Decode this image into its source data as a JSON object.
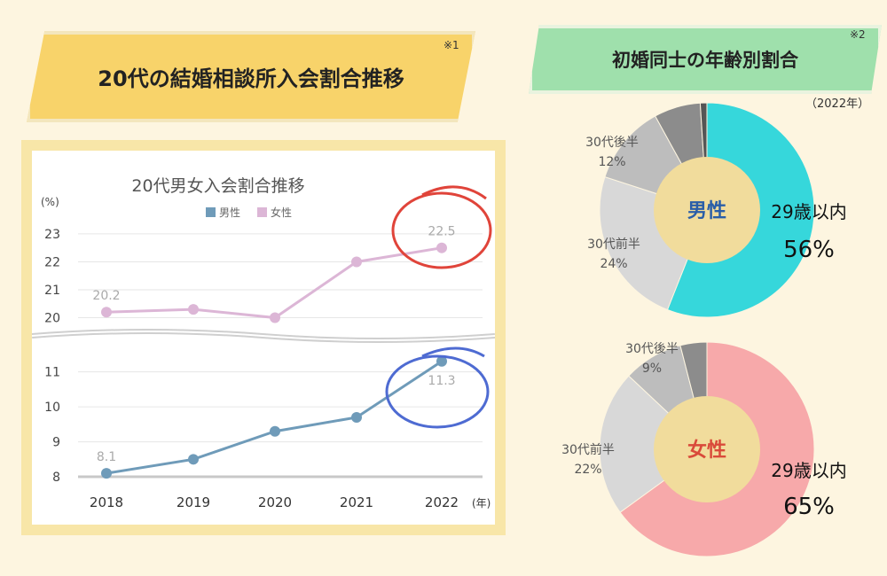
{
  "left_title": "20代の結婚相談所入会割合推移",
  "left_note": "※1",
  "right_title": "初婚同士の年齢別割合",
  "right_note": "※2",
  "right_year": "（2022年）",
  "colors": {
    "male": "#6f9bb9",
    "female": "#dcb6d6",
    "male_pie": "#36d7db",
    "female_pie": "#f7a9aa",
    "gray_light": "#d8d8d8",
    "gray_mid": "#bdbdbd",
    "gray_dark": "#8c8c8c",
    "gray_darkest": "#555555",
    "center": "#f1dc9c"
  },
  "chart_data": [
    {
      "type": "line",
      "title": "20代男女入会割合推移",
      "ylabel": "(%)",
      "xunit": "(年)",
      "categories": [
        "2018",
        "2019",
        "2020",
        "2021",
        "2022"
      ],
      "series": [
        {
          "name": "男性",
          "values": [
            8.1,
            8.5,
            9.3,
            9.7,
            11.3
          ],
          "labels": [
            "8.1",
            "",
            "",
            "",
            "11.3"
          ]
        },
        {
          "name": "女性",
          "values": [
            20.2,
            20.3,
            20.0,
            22.0,
            22.5
          ],
          "labels": [
            "20.2",
            "",
            "",
            "",
            "22.5"
          ]
        }
      ],
      "yticks_upper": [
        "20",
        "21",
        "22",
        "23"
      ],
      "yticks_lower": [
        "8",
        "9",
        "10",
        "11"
      ],
      "ylim_upper": [
        19.7,
        23.6
      ],
      "ylim_lower": [
        7.9,
        11.7
      ]
    },
    {
      "type": "pie",
      "center_label": "男性",
      "slices": [
        {
          "label": "29歳以内",
          "value": 56,
          "display": "56%"
        },
        {
          "label": "30代前半",
          "value": 24,
          "display": "24%"
        },
        {
          "label": "30代後半",
          "value": 12,
          "display": "12%"
        },
        {
          "label": "",
          "value": 7,
          "display": ""
        },
        {
          "label": "",
          "value": 1,
          "display": ""
        }
      ]
    },
    {
      "type": "pie",
      "center_label": "女性",
      "slices": [
        {
          "label": "29歳以内",
          "value": 65,
          "display": "65%"
        },
        {
          "label": "30代前半",
          "value": 22,
          "display": "22%"
        },
        {
          "label": "30代後半",
          "value": 9,
          "display": "9%"
        },
        {
          "label": "",
          "value": 4,
          "display": ""
        }
      ]
    }
  ]
}
